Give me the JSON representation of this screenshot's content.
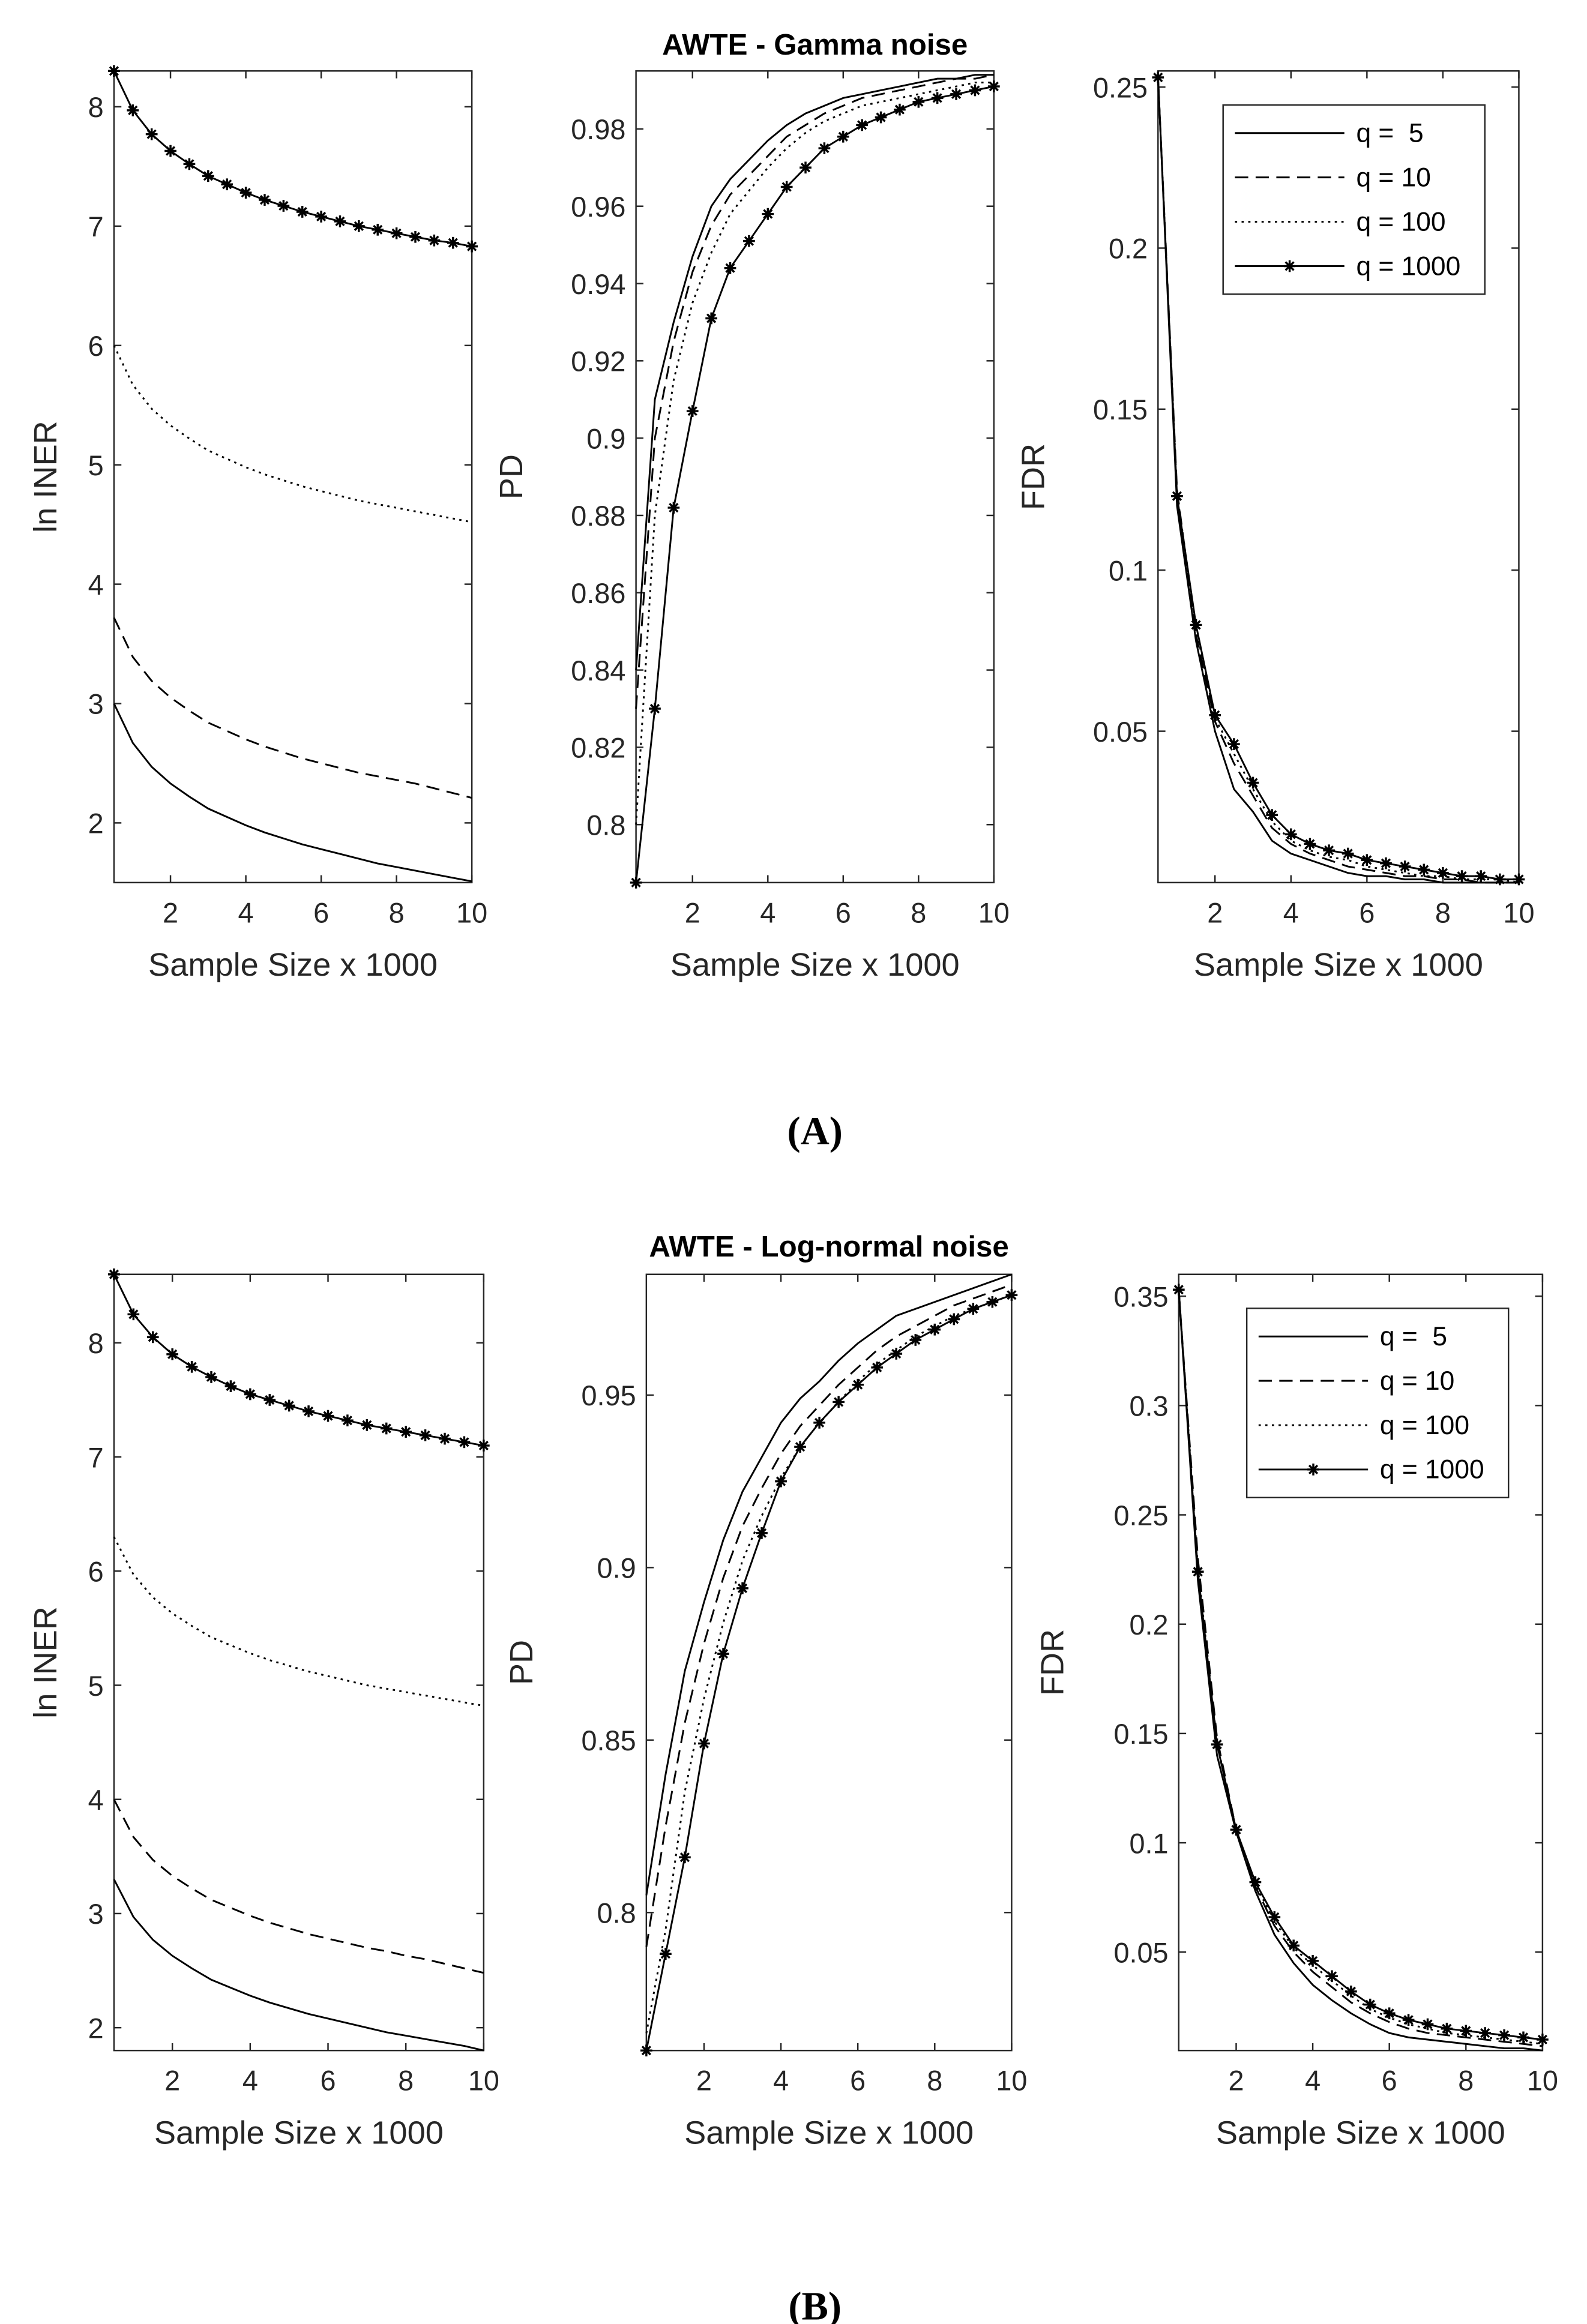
{
  "panel_labels": [
    "(A)",
    "(B)"
  ],
  "chart_data": [
    {
      "type": "line",
      "ylabel": "ln INER",
      "xlabel": "Sample Size x 1000",
      "x": [
        0.5,
        1,
        1.5,
        2,
        2.5,
        3,
        3.5,
        4,
        4.5,
        5,
        5.5,
        6,
        6.5,
        7,
        7.5,
        8,
        8.5,
        9,
        9.5,
        10
      ],
      "xlim": [
        0.5,
        10
      ],
      "xticks": [
        2,
        4,
        6,
        8,
        10
      ],
      "ylim": [
        1.5,
        8.3
      ],
      "yticks": [
        2,
        3,
        4,
        5,
        6,
        7,
        8
      ],
      "series": [
        {
          "name": "q =  5",
          "color": "#000000",
          "dash": "solid",
          "values": [
            3.0,
            2.67,
            2.47,
            2.33,
            2.22,
            2.12,
            2.05,
            1.98,
            1.92,
            1.87,
            1.82,
            1.78,
            1.74,
            1.7,
            1.66,
            1.63,
            1.6,
            1.57,
            1.54,
            1.51
          ]
        },
        {
          "name": "q = 10",
          "color": "#000000",
          "dash": "dashed",
          "values": [
            3.72,
            3.39,
            3.19,
            3.05,
            2.94,
            2.84,
            2.77,
            2.7,
            2.64,
            2.59,
            2.54,
            2.5,
            2.46,
            2.42,
            2.39,
            2.36,
            2.33,
            2.29,
            2.25,
            2.21
          ]
        },
        {
          "name": "q = 100",
          "color": "#000000",
          "dash": "dotted",
          "values": [
            6.0,
            5.67,
            5.47,
            5.33,
            5.22,
            5.12,
            5.05,
            4.98,
            4.92,
            4.87,
            4.82,
            4.78,
            4.74,
            4.7,
            4.67,
            4.64,
            4.61,
            4.58,
            4.55,
            4.52
          ]
        },
        {
          "name": "q = 1000",
          "color": "#000000",
          "dash": "solid",
          "marker": "star",
          "values": [
            8.3,
            7.97,
            7.77,
            7.63,
            7.52,
            7.42,
            7.35,
            7.28,
            7.22,
            7.17,
            7.12,
            7.08,
            7.04,
            7.0,
            6.97,
            6.94,
            6.91,
            6.88,
            6.86,
            6.83
          ]
        }
      ]
    },
    {
      "type": "line",
      "title": "AWTE - Gamma noise",
      "ylabel": "PD",
      "xlabel": "Sample Size x 1000",
      "x": [
        0.5,
        1,
        1.5,
        2,
        2.5,
        3,
        3.5,
        4,
        4.5,
        5,
        5.5,
        6,
        6.5,
        7,
        7.5,
        8,
        8.5,
        9,
        9.5,
        10
      ],
      "xlim": [
        0.5,
        10
      ],
      "xticks": [
        2,
        4,
        6,
        8,
        10
      ],
      "ylim": [
        0.785,
        0.995
      ],
      "yticks": [
        0.8,
        0.82,
        0.84,
        0.86,
        0.88,
        0.9,
        0.92,
        0.94,
        0.96,
        0.98
      ],
      "series": [
        {
          "name": "q =  5",
          "color": "#000000",
          "dash": "solid",
          "values": [
            0.84,
            0.91,
            0.93,
            0.947,
            0.96,
            0.967,
            0.972,
            0.977,
            0.981,
            0.984,
            0.986,
            0.988,
            0.989,
            0.99,
            0.991,
            0.992,
            0.993,
            0.993,
            0.994,
            0.994
          ]
        },
        {
          "name": "q = 10",
          "color": "#000000",
          "dash": "dashed",
          "values": [
            0.83,
            0.9,
            0.925,
            0.943,
            0.955,
            0.963,
            0.968,
            0.973,
            0.978,
            0.981,
            0.984,
            0.986,
            0.988,
            0.989,
            0.99,
            0.991,
            0.992,
            0.993,
            0.993,
            0.994
          ]
        },
        {
          "name": "q = 100",
          "color": "#000000",
          "dash": "dotted",
          "values": [
            0.8,
            0.88,
            0.915,
            0.935,
            0.948,
            0.958,
            0.964,
            0.97,
            0.975,
            0.979,
            0.982,
            0.984,
            0.986,
            0.987,
            0.988,
            0.989,
            0.99,
            0.991,
            0.992,
            0.992
          ]
        },
        {
          "name": "q = 1000",
          "color": "#000000",
          "dash": "solid",
          "marker": "star",
          "values": [
            0.785,
            0.83,
            0.882,
            0.907,
            0.931,
            0.944,
            0.951,
            0.958,
            0.965,
            0.97,
            0.975,
            0.978,
            0.981,
            0.983,
            0.985,
            0.987,
            0.988,
            0.989,
            0.99,
            0.991
          ]
        }
      ]
    },
    {
      "type": "line",
      "ylabel": "FDR",
      "xlabel": "Sample Size x 1000",
      "legend": "northeast",
      "x": [
        0.5,
        1,
        1.5,
        2,
        2.5,
        3,
        3.5,
        4,
        4.5,
        5,
        5.5,
        6,
        6.5,
        7,
        7.5,
        8,
        8.5,
        9,
        9.5,
        10
      ],
      "xlim": [
        0.5,
        10
      ],
      "xticks": [
        2,
        4,
        6,
        8,
        10
      ],
      "ylim": [
        0.003,
        0.255
      ],
      "yticks": [
        0.05,
        0.1,
        0.15,
        0.2,
        0.25
      ],
      "series": [
        {
          "name": "q =  5",
          "color": "#000000",
          "dash": "solid",
          "values": [
            0.253,
            0.12,
            0.078,
            0.05,
            0.032,
            0.025,
            0.016,
            0.012,
            0.01,
            0.008,
            0.006,
            0.005,
            0.005,
            0.004,
            0.004,
            0.003,
            0.003,
            0.003,
            0.003,
            0.003
          ]
        },
        {
          "name": "q = 10",
          "color": "#000000",
          "dash": "dashed",
          "values": [
            0.253,
            0.125,
            0.08,
            0.053,
            0.04,
            0.03,
            0.02,
            0.015,
            0.012,
            0.01,
            0.008,
            0.007,
            0.006,
            0.005,
            0.005,
            0.004,
            0.004,
            0.003,
            0.003,
            0.003
          ]
        },
        {
          "name": "q = 100",
          "color": "#000000",
          "dash": "dotted",
          "values": [
            0.253,
            0.124,
            0.082,
            0.054,
            0.043,
            0.032,
            0.022,
            0.016,
            0.013,
            0.011,
            0.01,
            0.008,
            0.007,
            0.006,
            0.005,
            0.005,
            0.004,
            0.004,
            0.004,
            0.003
          ]
        },
        {
          "name": "q = 1000",
          "color": "#000000",
          "dash": "solid",
          "marker": "star",
          "values": [
            0.253,
            0.123,
            0.083,
            0.055,
            0.046,
            0.034,
            0.024,
            0.018,
            0.015,
            0.013,
            0.012,
            0.01,
            0.009,
            0.008,
            0.007,
            0.006,
            0.005,
            0.005,
            0.004,
            0.004
          ]
        }
      ]
    },
    {
      "type": "line",
      "ylabel": "ln INER",
      "xlabel": "Sample Size x 1000",
      "x": [
        0.5,
        1,
        1.5,
        2,
        2.5,
        3,
        3.5,
        4,
        4.5,
        5,
        5.5,
        6,
        6.5,
        7,
        7.5,
        8,
        8.5,
        9,
        9.5,
        10
      ],
      "xlim": [
        0.5,
        10
      ],
      "xticks": [
        2,
        4,
        6,
        8,
        10
      ],
      "ylim": [
        1.8,
        8.6
      ],
      "yticks": [
        2,
        3,
        4,
        5,
        6,
        7,
        8
      ],
      "series": [
        {
          "name": "q =  5",
          "color": "#000000",
          "dash": "solid",
          "values": [
            3.3,
            2.97,
            2.77,
            2.63,
            2.52,
            2.42,
            2.35,
            2.28,
            2.22,
            2.17,
            2.12,
            2.08,
            2.04,
            2.0,
            1.96,
            1.93,
            1.9,
            1.87,
            1.84,
            1.8
          ]
        },
        {
          "name": "q = 10",
          "color": "#000000",
          "dash": "dashed",
          "values": [
            4.0,
            3.67,
            3.47,
            3.33,
            3.22,
            3.12,
            3.05,
            2.98,
            2.92,
            2.87,
            2.82,
            2.78,
            2.74,
            2.7,
            2.67,
            2.63,
            2.6,
            2.56,
            2.52,
            2.48
          ]
        },
        {
          "name": "q = 100",
          "color": "#000000",
          "dash": "dotted",
          "values": [
            6.3,
            5.97,
            5.77,
            5.63,
            5.52,
            5.42,
            5.35,
            5.28,
            5.22,
            5.17,
            5.12,
            5.08,
            5.04,
            5.0,
            4.97,
            4.94,
            4.91,
            4.88,
            4.85,
            4.82
          ]
        },
        {
          "name": "q = 1000",
          "color": "#000000",
          "dash": "solid",
          "marker": "star",
          "values": [
            8.6,
            8.25,
            8.05,
            7.9,
            7.79,
            7.7,
            7.62,
            7.55,
            7.5,
            7.45,
            7.4,
            7.36,
            7.32,
            7.28,
            7.25,
            7.22,
            7.19,
            7.16,
            7.13,
            7.1
          ]
        }
      ]
    },
    {
      "type": "line",
      "title": "AWTE - Log-normal noise",
      "ylabel": "PD",
      "xlabel": "Sample Size x 1000",
      "x": [
        0.5,
        1,
        1.5,
        2,
        2.5,
        3,
        3.5,
        4,
        4.5,
        5,
        5.5,
        6,
        6.5,
        7,
        7.5,
        8,
        8.5,
        9,
        9.5,
        10
      ],
      "xlim": [
        0.5,
        10
      ],
      "xticks": [
        2,
        4,
        6,
        8,
        10
      ],
      "ylim": [
        0.76,
        0.985
      ],
      "yticks": [
        0.8,
        0.85,
        0.9,
        0.95
      ],
      "series": [
        {
          "name": "q =  5",
          "color": "#000000",
          "dash": "solid",
          "values": [
            0.805,
            0.84,
            0.87,
            0.89,
            0.908,
            0.922,
            0.932,
            0.942,
            0.949,
            0.954,
            0.96,
            0.965,
            0.969,
            0.973,
            0.975,
            0.977,
            0.979,
            0.981,
            0.983,
            0.985
          ]
        },
        {
          "name": "q = 10",
          "color": "#000000",
          "dash": "dashed",
          "values": [
            0.79,
            0.825,
            0.855,
            0.878,
            0.897,
            0.912,
            0.923,
            0.933,
            0.941,
            0.947,
            0.953,
            0.958,
            0.963,
            0.967,
            0.97,
            0.973,
            0.976,
            0.978,
            0.98,
            0.982
          ]
        },
        {
          "name": "q = 100",
          "color": "#000000",
          "dash": "dotted",
          "values": [
            0.765,
            0.795,
            0.835,
            0.862,
            0.884,
            0.902,
            0.915,
            0.926,
            0.935,
            0.942,
            0.948,
            0.954,
            0.959,
            0.963,
            0.967,
            0.97,
            0.973,
            0.975,
            0.977,
            0.979
          ]
        },
        {
          "name": "q = 1000",
          "color": "#000000",
          "dash": "solid",
          "marker": "star",
          "values": [
            0.76,
            0.788,
            0.816,
            0.849,
            0.875,
            0.894,
            0.91,
            0.925,
            0.935,
            0.942,
            0.948,
            0.953,
            0.958,
            0.962,
            0.966,
            0.969,
            0.972,
            0.975,
            0.977,
            0.979
          ]
        }
      ]
    },
    {
      "type": "line",
      "ylabel": "FDR",
      "xlabel": "Sample Size x 1000",
      "legend": "northeast",
      "x": [
        0.5,
        1,
        1.5,
        2,
        2.5,
        3,
        3.5,
        4,
        4.5,
        5,
        5.5,
        6,
        6.5,
        7,
        7.5,
        8,
        8.5,
        9,
        9.5,
        10
      ],
      "xlim": [
        0.5,
        10
      ],
      "xticks": [
        2,
        4,
        6,
        8,
        10
      ],
      "ylim": [
        0.005,
        0.36
      ],
      "yticks": [
        0.05,
        0.1,
        0.15,
        0.2,
        0.25,
        0.3,
        0.35
      ],
      "series": [
        {
          "name": "q =  5",
          "color": "#000000",
          "dash": "solid",
          "values": [
            0.353,
            0.22,
            0.14,
            0.105,
            0.078,
            0.058,
            0.045,
            0.035,
            0.028,
            0.022,
            0.017,
            0.013,
            0.011,
            0.01,
            0.009,
            0.008,
            0.007,
            0.006,
            0.006,
            0.005
          ]
        },
        {
          "name": "q = 10",
          "color": "#000000",
          "dash": "dashed",
          "values": [
            0.353,
            0.23,
            0.148,
            0.106,
            0.08,
            0.062,
            0.05,
            0.041,
            0.034,
            0.027,
            0.022,
            0.018,
            0.015,
            0.013,
            0.012,
            0.011,
            0.01,
            0.009,
            0.008,
            0.007
          ]
        },
        {
          "name": "q = 100",
          "color": "#000000",
          "dash": "dotted",
          "values": [
            0.353,
            0.226,
            0.146,
            0.105,
            0.081,
            0.064,
            0.052,
            0.044,
            0.037,
            0.03,
            0.024,
            0.02,
            0.017,
            0.015,
            0.013,
            0.012,
            0.011,
            0.01,
            0.009,
            0.008
          ]
        },
        {
          "name": "q = 1000",
          "color": "#000000",
          "dash": "solid",
          "marker": "star",
          "values": [
            0.353,
            0.224,
            0.145,
            0.106,
            0.082,
            0.066,
            0.053,
            0.046,
            0.039,
            0.032,
            0.026,
            0.022,
            0.019,
            0.017,
            0.015,
            0.014,
            0.013,
            0.012,
            0.011,
            0.01
          ]
        }
      ]
    }
  ]
}
